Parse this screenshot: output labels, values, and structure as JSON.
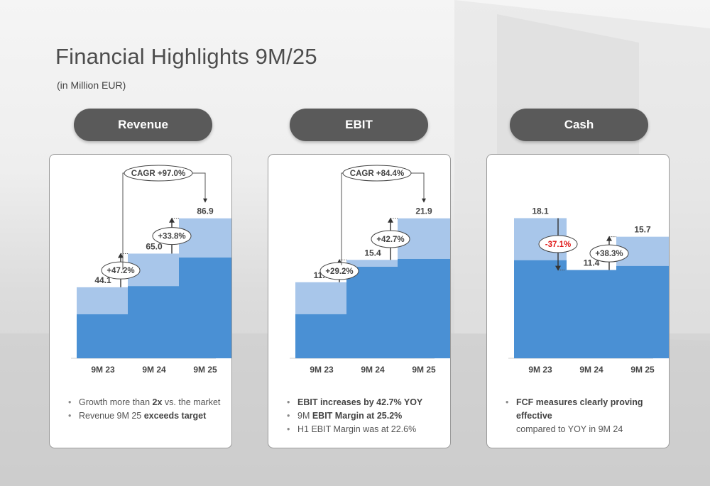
{
  "page": {
    "title": "Financial Highlights 9M/25",
    "subtitle": "(in Million EUR)"
  },
  "colors": {
    "bar_dark": "#4a90d4",
    "bar_light": "#a8c6ea",
    "pill": "#5a5a5a",
    "negative": "#e01a1a"
  },
  "sections": [
    {
      "header": "Revenue",
      "bullets": [
        [
          {
            "t": "Growth more than ",
            "b": false
          },
          {
            "t": "2x",
            "b": true
          },
          {
            "t": " vs. the market",
            "b": false
          }
        ],
        [
          {
            "t": "Revenue 9M 25 ",
            "b": false
          },
          {
            "t": "exceeds target",
            "b": true
          }
        ]
      ]
    },
    {
      "header": "EBIT",
      "bullets": [
        [
          {
            "t": "EBIT increases by 42.7% YOY",
            "b": true
          }
        ],
        [
          {
            "t": "9M ",
            "b": false
          },
          {
            "t": "EBIT Margin at 25.2%",
            "b": true
          }
        ],
        [
          {
            "t": "H1 EBIT Margin was at 22.6%",
            "b": false
          }
        ]
      ]
    },
    {
      "header": "Cash",
      "bullets": [
        [
          {
            "t": "FCF measures clearly proving effective",
            "b": true
          }
        ],
        [
          {
            "t": "compared to YOY in 9M 24",
            "b": false
          }
        ]
      ]
    }
  ],
  "chart_data": [
    {
      "type": "bar",
      "name": "Revenue",
      "categories": [
        "9M 23",
        "9M 24",
        "9M 25"
      ],
      "values": [
        44.1,
        65.0,
        86.9
      ],
      "value_labels": [
        "44.1",
        "65.0",
        "86.9"
      ],
      "dark_share": [
        0.62,
        0.69,
        0.72
      ],
      "changes": [
        {
          "label": "+47.2%",
          "from": 0,
          "to": 1,
          "direction": "up"
        },
        {
          "label": "+33.8%",
          "from": 1,
          "to": 2,
          "direction": "up"
        }
      ],
      "cagr": {
        "label": "CAGR +97.0%",
        "from": 0,
        "to": 2
      },
      "ylim": [
        0,
        100
      ]
    },
    {
      "type": "bar",
      "name": "EBIT",
      "categories": [
        "9M 23",
        "9M 24",
        "9M 25"
      ],
      "values": [
        11.9,
        15.4,
        21.9
      ],
      "value_labels": [
        "11.9",
        "15.4",
        "21.9"
      ],
      "dark_share": [
        0.58,
        0.93,
        0.71
      ],
      "changes": [
        {
          "label": "+29.2%",
          "from": 0,
          "to": 1,
          "direction": "up"
        },
        {
          "label": "+42.7%",
          "from": 1,
          "to": 2,
          "direction": "up"
        }
      ],
      "cagr": {
        "label": "CAGR +84.4%",
        "from": 0,
        "to": 2
      },
      "ylim": [
        0,
        25.2
      ]
    },
    {
      "type": "bar",
      "name": "Cash",
      "categories": [
        "9M 23",
        "9M 24",
        "9M 25"
      ],
      "values": [
        18.1,
        11.4,
        15.7
      ],
      "value_labels": [
        "18.1",
        "11.4",
        "15.7"
      ],
      "dark_share": [
        0.7,
        1.0,
        0.76
      ],
      "changes": [
        {
          "label": "-37.1%",
          "from": 0,
          "to": 1,
          "direction": "down",
          "negative": true
        },
        {
          "label": "+38.3%",
          "from": 1,
          "to": 2,
          "direction": "up"
        }
      ],
      "ylim": [
        0,
        20.8
      ]
    }
  ]
}
